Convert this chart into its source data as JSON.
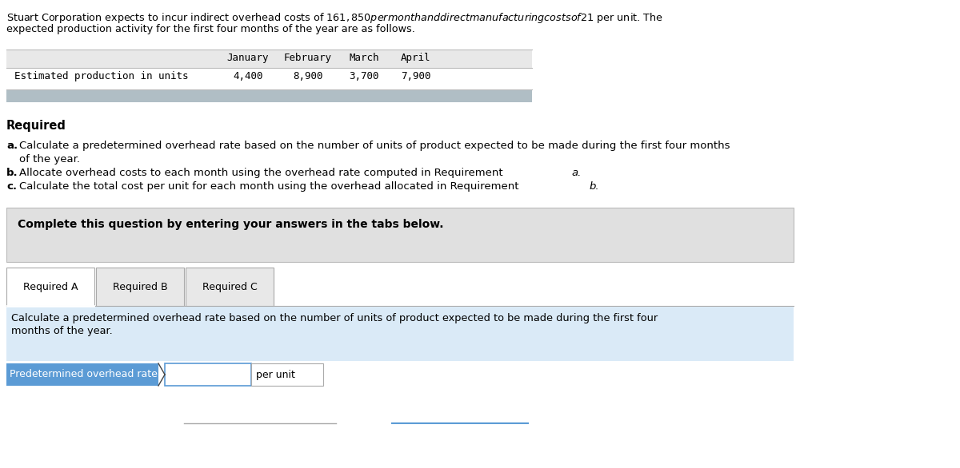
{
  "intro_line1": "Stuart Corporation expects to incur indirect overhead costs of $161,850 per month and direct manufacturing costs of $21 per unit. The",
  "intro_line2": "expected production activity for the first four months of the year are as follows.",
  "table_headers": [
    "January",
    "February",
    "March",
    "April"
  ],
  "table_row_label": "Estimated production in units",
  "table_values": [
    "4,400",
    "8,900",
    "3,700",
    "7,900"
  ],
  "required_label": "Required",
  "req_a_bullet": "a.",
  "req_a_main": "Calculate a predetermined overhead rate based on the number of units of product expected to be made during the first four months",
  "req_a_cont": "of the year.",
  "req_b_bullet": "b.",
  "req_b_main": "Allocate overhead costs to each month using the overhead rate computed in Requirement ",
  "req_b_italic": "a.",
  "req_c_bullet": "c.",
  "req_c_main": "Calculate the total cost per unit for each month using the overhead allocated in Requirement ",
  "req_c_italic": "b.",
  "complete_text": "Complete this question by entering your answers in the tabs below.",
  "tab_labels": [
    "Required A",
    "Required B",
    "Required C"
  ],
  "content_line1": "Calculate a predetermined overhead rate based on the number of units of product expected to be made during the first four",
  "content_line2": "months of the year.",
  "row_label": "Predetermined overhead rate",
  "per_unit_text": "per unit",
  "bg_color": "#ffffff",
  "table_header_bg": "#e8e8e8",
  "table_row_bg": "#ffffff",
  "table_border_color": "#bbbbbb",
  "table_footer_color": "#b0bec5",
  "complete_box_bg": "#e0e0e0",
  "complete_box_border": "#bbbbbb",
  "content_box_bg": "#daeaf7",
  "tab_active_bg": "#ffffff",
  "tab_inactive_bg": "#e8e8e8",
  "tab_border_color": "#aaaaaa",
  "row_label_bg": "#5b9bd5",
  "row_label_text_color": "#ffffff",
  "input_box_bg": "#ffffff",
  "input_box_border": "#5b9bd5",
  "per_unit_box_border": "#aaaaaa",
  "bottom_line1_color": "#aaaaaa",
  "bottom_line2_color": "#5b9bd5"
}
